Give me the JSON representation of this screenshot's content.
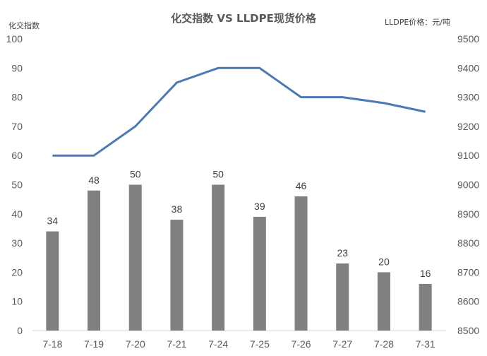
{
  "chart_data": {
    "type": "bar",
    "title": "化交指数 VS LLDPE现货价格",
    "left_axis_label": "化交指数",
    "right_axis_label": "LLDPE价格：元/吨",
    "categories": [
      "7-18",
      "7-19",
      "7-20",
      "7-21",
      "7-24",
      "7-25",
      "7-26",
      "7-27",
      "7-28",
      "7-31"
    ],
    "series": [
      {
        "type": "bar",
        "axis": "left",
        "values": [
          34,
          48,
          50,
          38,
          50,
          39,
          46,
          23,
          20,
          16
        ]
      },
      {
        "type": "line",
        "axis": "right",
        "values": [
          9100,
          9100,
          9200,
          9350,
          9400,
          9400,
          9300,
          9300,
          9280,
          9250
        ]
      }
    ],
    "ylim_left": [
      0,
      100
    ],
    "yticks_left": [
      "0",
      "10",
      "20",
      "30",
      "40",
      "50",
      "60",
      "70",
      "80",
      "90",
      "100"
    ],
    "ylim_right": [
      8500,
      9500
    ],
    "yticks_right": [
      "8500",
      "8600",
      "8700",
      "8800",
      "8900",
      "9000",
      "9100",
      "9200",
      "9300",
      "9400",
      "9500"
    ],
    "data_labels": true,
    "grid": false,
    "colors": {
      "bar": "#808080",
      "line": "#4a7ab5",
      "axis": "#d9d9d9"
    }
  }
}
